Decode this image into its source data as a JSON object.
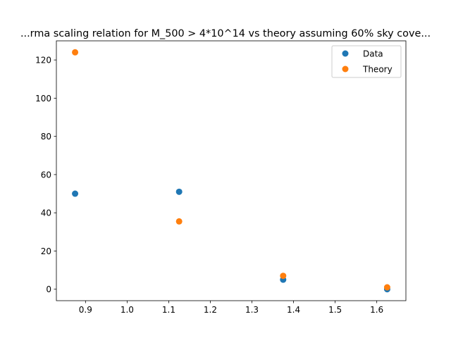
{
  "chart_data": {
    "type": "scatter",
    "title": "...rma scaling relation for M_500 > 4*10^14 vs theory assuming 60% sky cove...",
    "xlabel": "",
    "ylabel": "",
    "xlim": [
      0.83,
      1.67
    ],
    "ylim": [
      -6,
      130
    ],
    "x_ticks": [
      "0.9",
      "1.0",
      "1.1",
      "1.2",
      "1.3",
      "1.4",
      "1.5",
      "1.6"
    ],
    "y_ticks": [
      "0",
      "20",
      "40",
      "60",
      "80",
      "100",
      "120"
    ],
    "legend_position": "top-right",
    "grid": false,
    "series": [
      {
        "name": "Data",
        "color": "#1f77b4",
        "x": [
          0.875,
          1.125,
          1.375,
          1.625
        ],
        "y": [
          50,
          51,
          5,
          0
        ]
      },
      {
        "name": "Theory",
        "color": "#ff7f0e",
        "x": [
          0.875,
          1.125,
          1.375,
          1.625
        ],
        "y": [
          124,
          35.5,
          7,
          1
        ]
      }
    ]
  }
}
